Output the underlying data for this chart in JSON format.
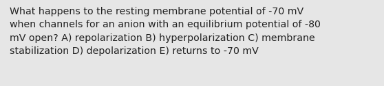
{
  "text": "What happens to the resting membrane potential of -70 mV\nwhen channels for an anion with an equilibrium potential of -80\nmV open? A) repolarization B) hyperpolarization C) membrane\nstabilization D) depolarization E) returns to -70 mV",
  "background_color": "#e6e6e6",
  "text_color": "#222222",
  "font_size": 10.2,
  "fig_width": 5.58,
  "fig_height": 1.26,
  "dpi": 100
}
